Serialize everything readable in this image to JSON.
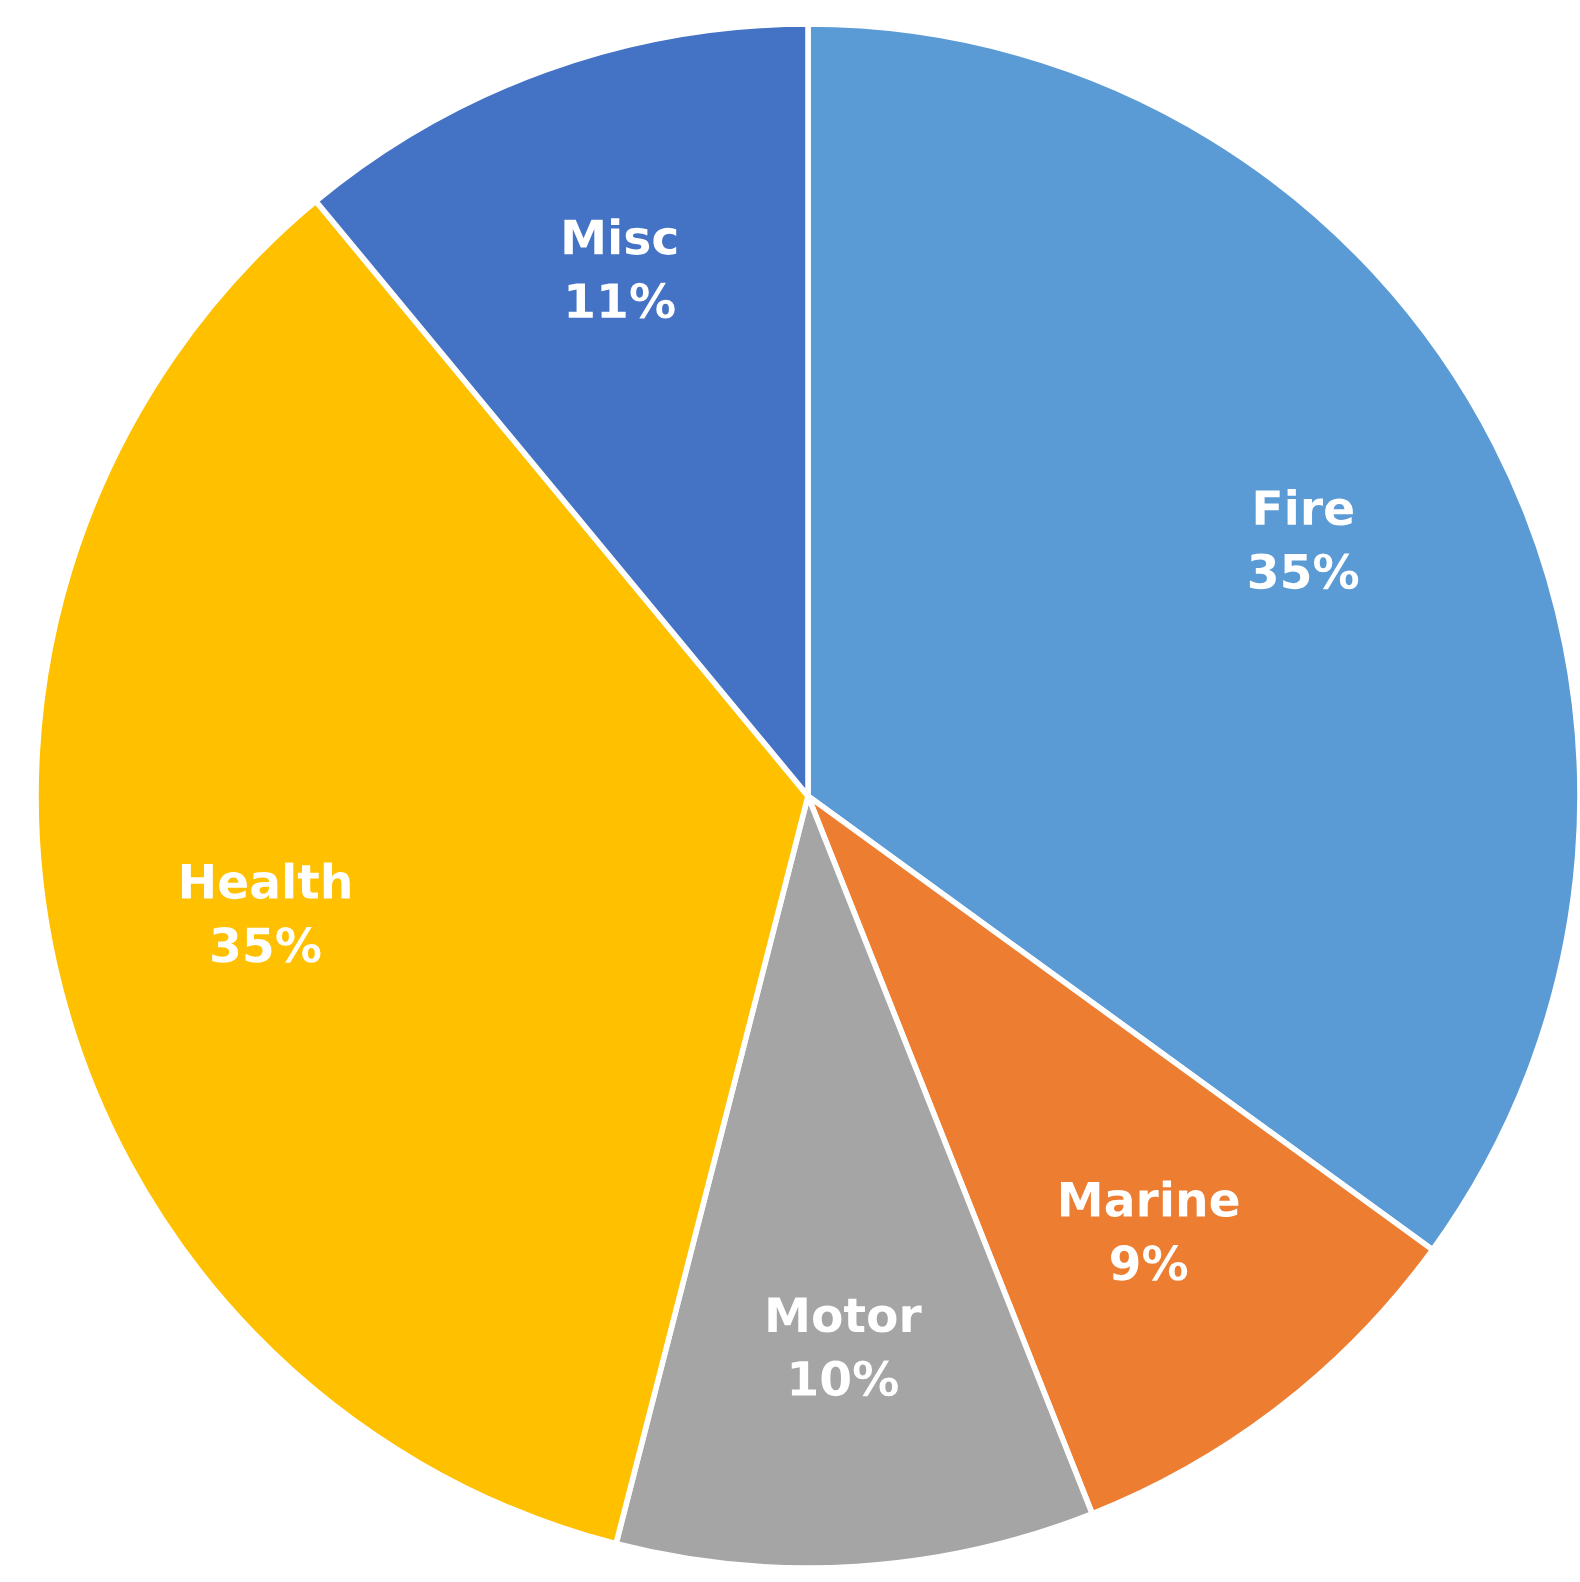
{
  "chart_data": {
    "type": "pie",
    "categories": [
      "Fire",
      "Marine",
      "Motor",
      "Health",
      "Misc"
    ],
    "values": [
      35,
      9,
      10,
      35,
      11
    ],
    "value_labels": [
      "35%",
      "9%",
      "10%",
      "35%",
      "11%"
    ],
    "colors": [
      "#5b9bd5",
      "#ed7d31",
      "#a5a5a5",
      "#ffc000",
      "#4472c4"
    ],
    "legend": false
  }
}
